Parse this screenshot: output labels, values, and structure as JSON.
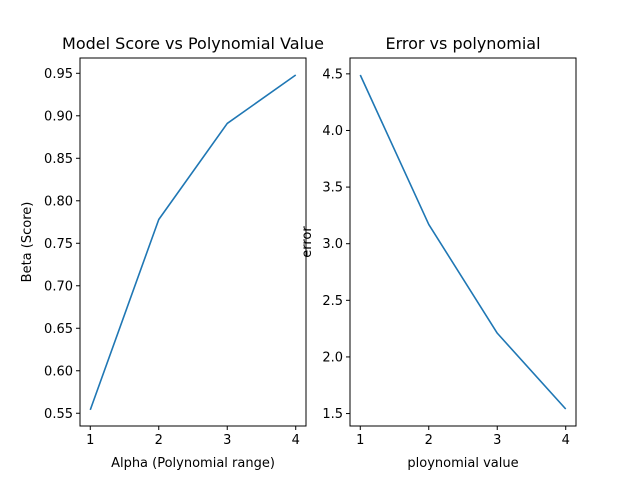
{
  "chart_data": [
    {
      "type": "line",
      "title": "Model Score vs Polynomial Value",
      "xlabel": "Alpha (Polynomial range)",
      "ylabel": "Beta (Score)",
      "x": [
        1,
        2,
        3,
        4
      ],
      "xticks": [
        "1",
        "2",
        "3",
        "4"
      ],
      "yticks": [
        "0.55",
        "0.60",
        "0.65",
        "0.70",
        "0.75",
        "0.80",
        "0.85",
        "0.90",
        "0.95"
      ],
      "xlim": [
        0.85,
        4.15
      ],
      "ylim": [
        0.535,
        0.968
      ],
      "grid": false,
      "series": [
        {
          "values": [
            0.554,
            0.778,
            0.891,
            0.948
          ],
          "color": "#1f77b4"
        }
      ]
    },
    {
      "type": "line",
      "title": "Error vs polynomial",
      "xlabel": "ploynomial value",
      "ylabel": "error",
      "x": [
        1,
        2,
        3,
        4
      ],
      "xticks": [
        "1",
        "2",
        "3",
        "4"
      ],
      "yticks": [
        "1.5",
        "2.0",
        "2.5",
        "3.0",
        "3.5",
        "4.0",
        "4.5"
      ],
      "xlim": [
        0.85,
        4.15
      ],
      "ylim": [
        1.39,
        4.64
      ],
      "grid": false,
      "series": [
        {
          "values": [
            4.49,
            3.17,
            2.21,
            1.54
          ],
          "color": "#1f77b4"
        }
      ]
    }
  ]
}
